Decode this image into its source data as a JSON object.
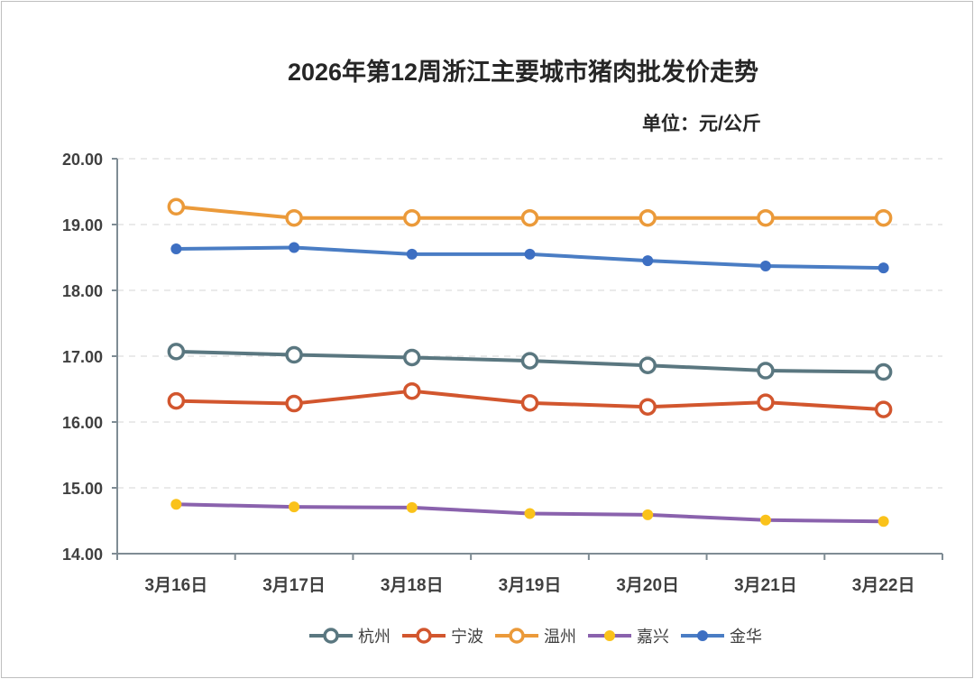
{
  "chart_data": {
    "type": "line",
    "title": "2026年第12周浙江主要城市猪肉批发价走势",
    "unit_label": "单位：元/公斤",
    "categories": [
      "3月16日",
      "3月17日",
      "3月18日",
      "3月19日",
      "3月20日",
      "3月21日",
      "3月22日"
    ],
    "ylim": [
      14,
      20
    ],
    "yticks": [
      "14.00",
      "15.00",
      "16.00",
      "17.00",
      "18.00",
      "19.00",
      "20.00"
    ],
    "grid": true,
    "legend_position": "bottom",
    "series": [
      {
        "name": "杭州",
        "color": "#5a7780",
        "marker": "hollow-circle",
        "values": [
          17.07,
          17.02,
          16.98,
          16.93,
          16.86,
          16.78,
          16.76
        ]
      },
      {
        "name": "宁波",
        "color": "#d2562e",
        "marker": "hollow-circle",
        "values": [
          16.32,
          16.28,
          16.47,
          16.29,
          16.23,
          16.3,
          16.19
        ]
      },
      {
        "name": "温州",
        "color": "#eb9a3a",
        "marker": "hollow-circle",
        "values": [
          19.27,
          19.1,
          19.1,
          19.1,
          19.1,
          19.1,
          19.1
        ]
      },
      {
        "name": "嘉兴",
        "color": "#8a62ad",
        "marker_color": "#fac21a",
        "marker": "filled-dot",
        "values": [
          14.75,
          14.71,
          14.7,
          14.61,
          14.59,
          14.51,
          14.49
        ]
      },
      {
        "name": "金华",
        "color": "#4a7dc4",
        "marker_color": "#3d6fc2",
        "marker": "filled-dot",
        "values": [
          18.63,
          18.65,
          18.55,
          18.55,
          18.45,
          18.37,
          18.34
        ]
      }
    ]
  }
}
